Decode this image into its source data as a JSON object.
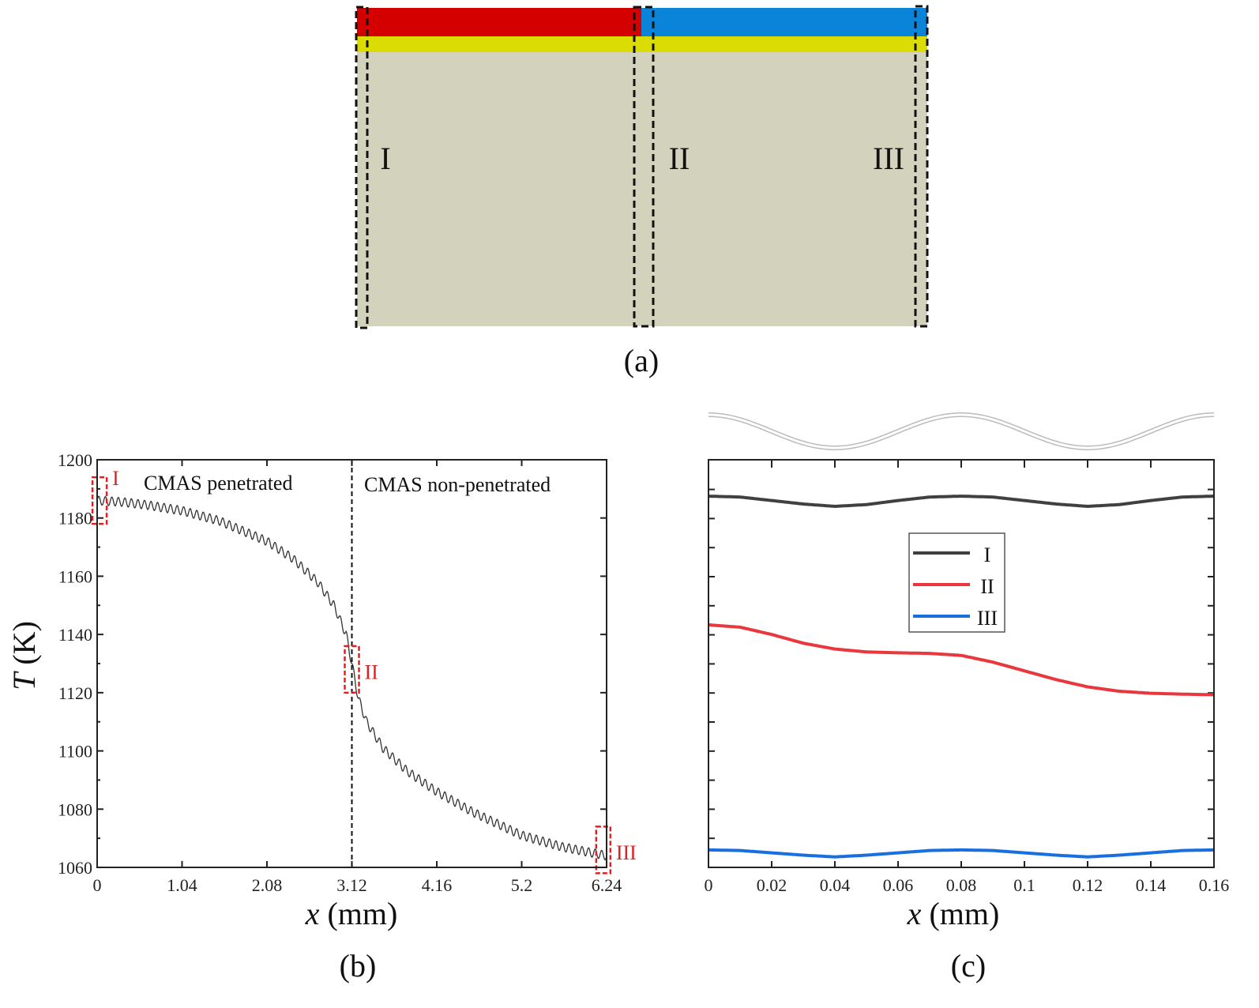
{
  "panel_a": {
    "label": "(a)",
    "colors": {
      "penetrated_top": "#d40000",
      "non_penetrated_top": "#0a84d8",
      "bond_layer": "#dcdc05",
      "substrate": "#d3d2bc"
    },
    "regions": [
      "I",
      "II",
      "III"
    ]
  },
  "chart_data": [
    {
      "type": "line",
      "panel_label": "(b)",
      "xlabel_italic": "x",
      "xlabel_unit": " (mm)",
      "ylabel_italic": "T",
      "ylabel_unit": " (K)",
      "xlim": [
        0,
        6.24
      ],
      "ylim": [
        1060,
        1200
      ],
      "xticks": [
        "0",
        "1.04",
        "2.08",
        "3.12",
        "4.16",
        "5.2",
        "6.24"
      ],
      "yticks": [
        "1060",
        "1080",
        "1100",
        "1120",
        "1140",
        "1160",
        "1180",
        "1200"
      ],
      "grid": false,
      "divider_x": 3.12,
      "annotations": [
        "CMAS penetrated",
        "CMAS non-penetrated"
      ],
      "region_markers": [
        {
          "label": "I",
          "x": 0.03,
          "y_range": [
            1178,
            1194
          ]
        },
        {
          "label": "II",
          "x": 3.12,
          "y_range": [
            1120,
            1136
          ]
        },
        {
          "label": "III",
          "x": 6.2,
          "y_range": [
            1058,
            1074
          ]
        }
      ],
      "series": [
        {
          "color": "#333333",
          "x": [
            0,
            0.3,
            0.6,
            1.04,
            1.5,
            2.08,
            2.4,
            2.7,
            2.9,
            3.05,
            3.12,
            3.2,
            3.3,
            3.5,
            3.8,
            4.16,
            4.6,
            5.2,
            5.7,
            6.24
          ],
          "y": [
            1186,
            1185.5,
            1184.5,
            1182.5,
            1179,
            1172,
            1166,
            1158,
            1150,
            1140,
            1130,
            1118,
            1110,
            1101,
            1093,
            1086,
            1079,
            1071,
            1067,
            1064
          ],
          "ripple_amplitude_K": 1.5,
          "ripple_period_mm": 0.08
        }
      ]
    },
    {
      "type": "line",
      "panel_label": "(c)",
      "xlabel_italic": "x",
      "xlabel_unit": " (mm)",
      "xlim": [
        0,
        0.16
      ],
      "ylim": [
        1060,
        1200
      ],
      "xticks": [
        "0",
        "0.02",
        "0.04",
        "0.06",
        "0.08",
        "0.1",
        "0.12",
        "0.14",
        "0.16"
      ],
      "yticks_labeled": false,
      "grid": false,
      "legend_position": "center",
      "surface_profile": "sinusoidal, period 0.08 mm",
      "x": [
        0,
        0.01,
        0.02,
        0.03,
        0.04,
        0.05,
        0.06,
        0.07,
        0.08,
        0.09,
        0.1,
        0.11,
        0.12,
        0.13,
        0.14,
        0.15,
        0.16
      ],
      "series": [
        {
          "name": "I",
          "color": "#404040",
          "y": [
            1187.5,
            1187.2,
            1186,
            1184.8,
            1184,
            1184.6,
            1186,
            1187.2,
            1187.5,
            1187.2,
            1186,
            1184.8,
            1184,
            1184.6,
            1186,
            1187.2,
            1187.5
          ]
        },
        {
          "name": "II",
          "color": "#e8383d",
          "y": [
            1143.3,
            1142.5,
            1140,
            1137,
            1135,
            1134,
            1133.7,
            1133.5,
            1132.8,
            1130.5,
            1127.5,
            1124.5,
            1122,
            1120.5,
            1119.8,
            1119.5,
            1119.3
          ]
        },
        {
          "name": "III",
          "color": "#1a6fe0",
          "y": [
            1066,
            1065.8,
            1065,
            1064.2,
            1063.6,
            1064.2,
            1065,
            1065.8,
            1066,
            1065.8,
            1065,
            1064.2,
            1063.6,
            1064.2,
            1065,
            1065.8,
            1066
          ]
        }
      ]
    }
  ]
}
